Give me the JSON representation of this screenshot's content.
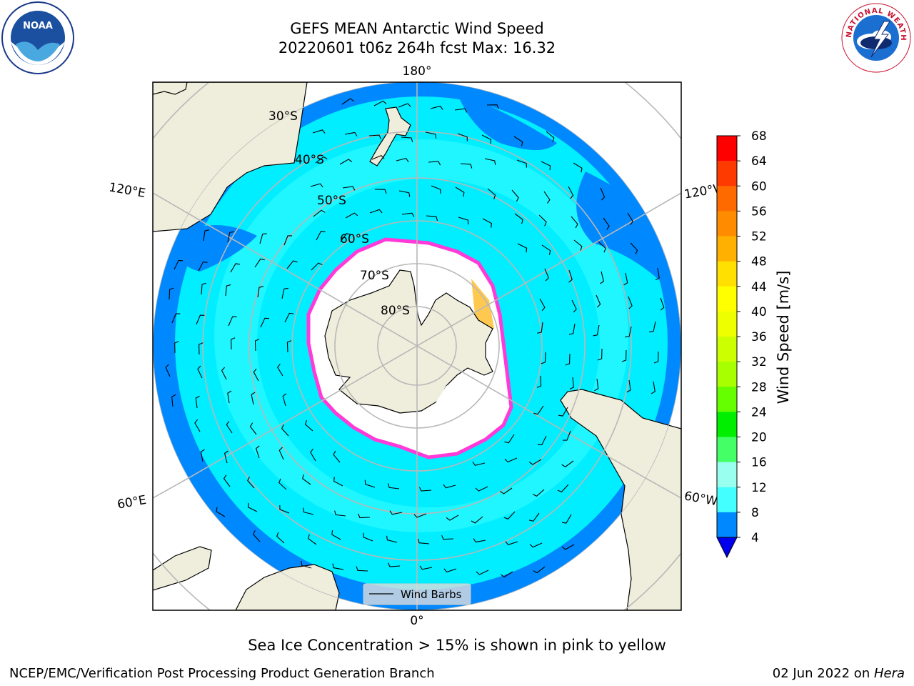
{
  "header": {
    "title_line1": "GEFS MEAN Antarctic Wind Speed",
    "title_line2": "20220601 t06z 264h fcst   Max: 16.32"
  },
  "logos": {
    "left": {
      "icon": "noaa-logo",
      "text": "NOAA"
    },
    "right": {
      "icon": "nws-logo",
      "text": "NATIONAL WEATHER SERVICE"
    }
  },
  "map": {
    "projection": "south-polar-stereographic",
    "longitude_labels": {
      "top": "180°",
      "bottom": "0°",
      "left_upper": "120°E",
      "left_lower": "60°E",
      "right_upper": "120°W",
      "right_lower": "60°W"
    },
    "latitude_labels": [
      "30°S",
      "40°S",
      "50°S",
      "60°S",
      "70°S",
      "80°S"
    ],
    "legend_label": "Wind Barbs",
    "colors": {
      "land": "#efeedc",
      "ice": "#ffffff",
      "sea_ice_edge": "#ff3ad8",
      "sea_ice_yellow": "#ffc030"
    }
  },
  "colorbar": {
    "label": "Wind Speed [m/s]",
    "ticks": [
      "68",
      "64",
      "60",
      "56",
      "52",
      "48",
      "44",
      "40",
      "36",
      "32",
      "28",
      "24",
      "20",
      "16",
      "12",
      "8",
      "4"
    ],
    "colors": [
      "#ff0000",
      "#ff3a00",
      "#ff6a00",
      "#ff8c00",
      "#ffb000",
      "#ffe000",
      "#ffff00",
      "#eeff00",
      "#ccff00",
      "#a8ff00",
      "#66ff00",
      "#00ee00",
      "#44ff66",
      "#99ffee",
      "#44ffff",
      "#00eeff",
      "#0088ff"
    ],
    "under_color": "#0000ee"
  },
  "footer": {
    "caption": "Sea Ice Concentration > 15% is shown in pink to yellow",
    "credit": "NCEP/EMC/Verification Post Processing Product Generation Branch",
    "date": "02 Jun 2022 on ",
    "machine": "Hera"
  }
}
